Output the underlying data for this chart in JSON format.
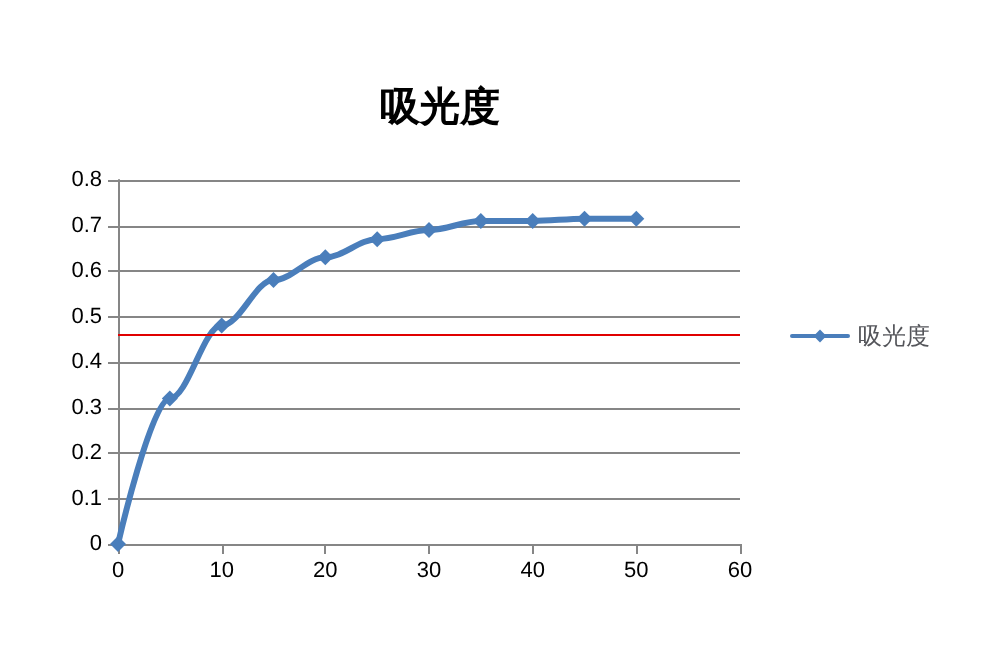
{
  "chart_data": {
    "type": "line",
    "title": "吸光度",
    "x": [
      0,
      5,
      10,
      15,
      20,
      25,
      30,
      35,
      40,
      45,
      50
    ],
    "series": [
      {
        "name": "吸光度",
        "color": "#4a7ebb",
        "values": [
          0,
          0.32,
          0.48,
          0.58,
          0.63,
          0.67,
          0.69,
          0.71,
          0.71,
          0.715,
          0.715
        ]
      }
    ],
    "xlim": [
      0,
      60
    ],
    "xticks": [
      0,
      10,
      20,
      30,
      40,
      50,
      60
    ],
    "ylim": [
      0,
      0.8
    ],
    "yticks": [
      0,
      0.1,
      0.2,
      0.3,
      0.4,
      0.5,
      0.6,
      0.7,
      0.8
    ],
    "ref_lines": [
      {
        "axis": "y",
        "value": 0.46,
        "color": "#e00000"
      }
    ],
    "grid": "y",
    "legend": "right",
    "marker": "diamond",
    "line_style": "solid"
  }
}
